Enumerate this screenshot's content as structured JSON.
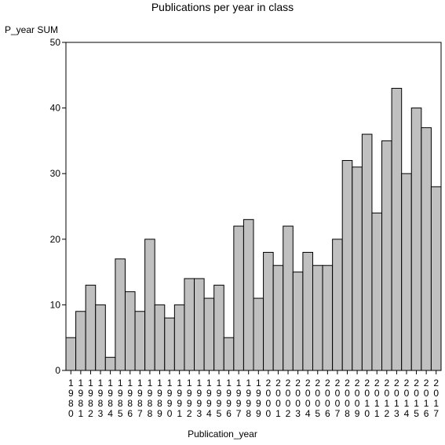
{
  "chart_data": {
    "type": "bar",
    "title": "Publications per year in class",
    "xlabel": "Publication_year",
    "ylabel": "P_year SUM",
    "ylim": [
      0,
      50
    ],
    "yticks": [
      0,
      10,
      20,
      30,
      40,
      50
    ],
    "grid": false,
    "categories": [
      "1980",
      "1981",
      "1982",
      "1983",
      "1984",
      "1985",
      "1986",
      "1987",
      "1988",
      "1989",
      "1990",
      "1991",
      "1992",
      "1993",
      "1994",
      "1995",
      "1996",
      "1997",
      "1998",
      "1999",
      "2000",
      "2001",
      "2002",
      "2003",
      "2004",
      "2005",
      "2006",
      "2007",
      "2008",
      "2009",
      "2010",
      "2011",
      "2012",
      "2013",
      "2014",
      "2015",
      "2016",
      "2017"
    ],
    "values": [
      5,
      9,
      13,
      10,
      2,
      17,
      12,
      9,
      20,
      10,
      8,
      10,
      14,
      14,
      11,
      13,
      5,
      22,
      23,
      11,
      18,
      16,
      22,
      15,
      18,
      16,
      16,
      20,
      32,
      31,
      36,
      24,
      35,
      43,
      30,
      40,
      37,
      28
    ],
    "bar_color": "#c0c0c0"
  }
}
